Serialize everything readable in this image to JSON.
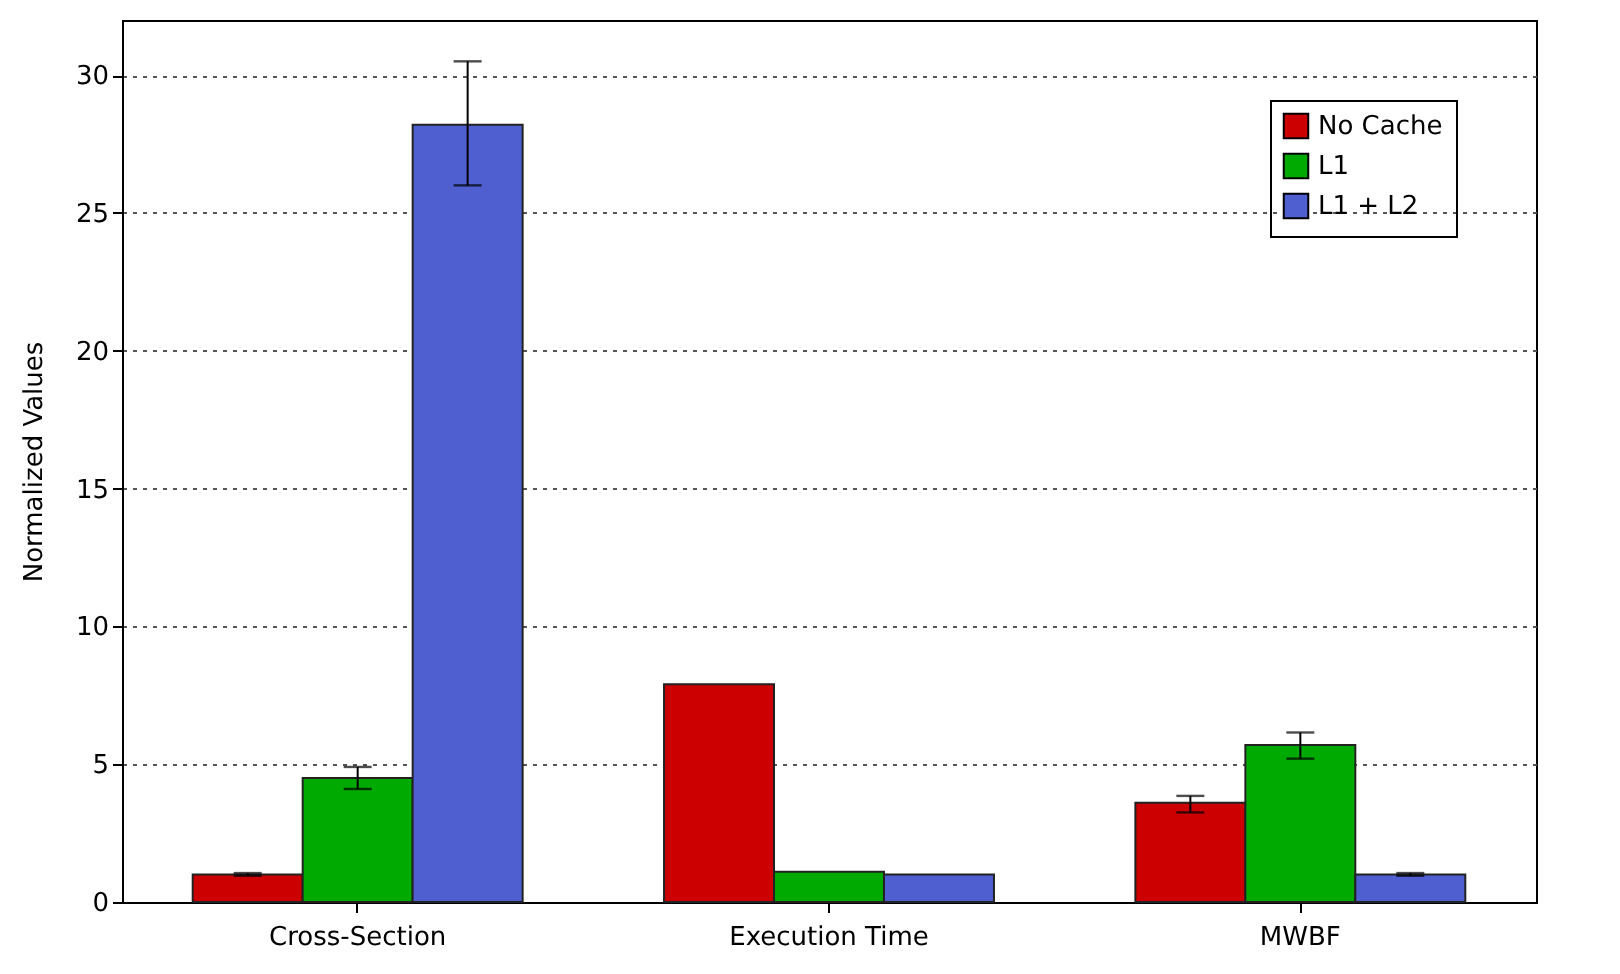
{
  "chart_data": {
    "type": "bar",
    "ylabel": "Normalized Values",
    "categories": [
      "Cross-Section",
      "Execution Time",
      "MWBF"
    ],
    "series": [
      {
        "name": "No Cache",
        "color": "#cc0000",
        "values": [
          1.0,
          7.9,
          3.6
        ],
        "errors": [
          [
            0.95,
            1.05
          ],
          null,
          [
            3.25,
            3.85
          ]
        ]
      },
      {
        "name": "L1",
        "color": "#00aa00",
        "values": [
          4.5,
          1.1,
          5.7
        ],
        "errors": [
          [
            4.1,
            4.9
          ],
          null,
          [
            5.2,
            6.15
          ]
        ]
      },
      {
        "name": "L1 + L2",
        "color": "#4f5fd0",
        "values": [
          28.2,
          1.0,
          1.0
        ],
        "errors": [
          [
            26.0,
            30.5
          ],
          null,
          [
            0.95,
            1.05
          ]
        ]
      }
    ],
    "ylim": [
      0,
      32
    ],
    "yticks": [
      0,
      5,
      10,
      15,
      20,
      25,
      30
    ],
    "grid": "y",
    "legend": "top right"
  }
}
